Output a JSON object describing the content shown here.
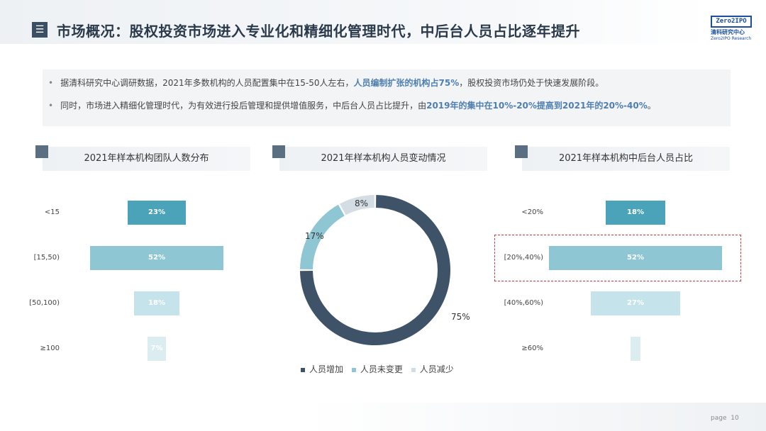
{
  "title": "市场概况：股权投资市场进入专业化和精细化管理时代，中后台人员占比逐年提升",
  "title_icon": "list-icon",
  "logo": {
    "box": "Zero2IPO",
    "cn": "清科研究中心",
    "en": "Zero2IPO Research"
  },
  "summary": {
    "line1_a": "据清科研究中心调研数据，2021年多数机构的人员配置集中在15-50人左右，",
    "line1_hl": "人员编制扩张的机构占75%",
    "line1_b": "，股权投资市场仍处于快速发展阶段。",
    "line2_a": "同时，市场进入精细化管理时代，为有效进行投后管理和提供增值服务，中后台人员占比提升，由",
    "line2_hl": "2019年的集中在10%-20%提高到2021年的20%-40%",
    "line2_b": "。"
  },
  "page": {
    "label": "page",
    "number": "10"
  },
  "colors": {
    "dark": "#3f5368",
    "mid": "#8fc6d4",
    "light": "#c5e3ea",
    "teal": "#4aa3b8",
    "pale": "#d4e4ec"
  },
  "chart_data": [
    {
      "type": "bar",
      "title": "2021年样本机构团队人数分布",
      "categories": [
        "<15",
        "[15,50)",
        "[50,100)",
        "≥100"
      ],
      "values": [
        23,
        52,
        18,
        7
      ],
      "labels": [
        "23%",
        "52%",
        "18%",
        "7%"
      ],
      "orientation": "horizontal-centered"
    },
    {
      "type": "pie",
      "title": "2021年样本机构人员变动情况",
      "categories": [
        "人员增加",
        "人员未变更",
        "人员减少"
      ],
      "values": [
        75,
        17,
        8
      ],
      "labels": [
        "75%",
        "17%",
        "8%"
      ],
      "legend": "bottom"
    },
    {
      "type": "bar",
      "title": "2021年样本机构中后台人员占比",
      "categories": [
        "<20%",
        "[20%,40%)",
        "[40%,60%)",
        "≥60%"
      ],
      "values": [
        18,
        52,
        27,
        3
      ],
      "labels": [
        "18%",
        "52%",
        "27%",
        ""
      ],
      "orientation": "horizontal-centered",
      "highlighted": "[20%,40%)"
    }
  ]
}
